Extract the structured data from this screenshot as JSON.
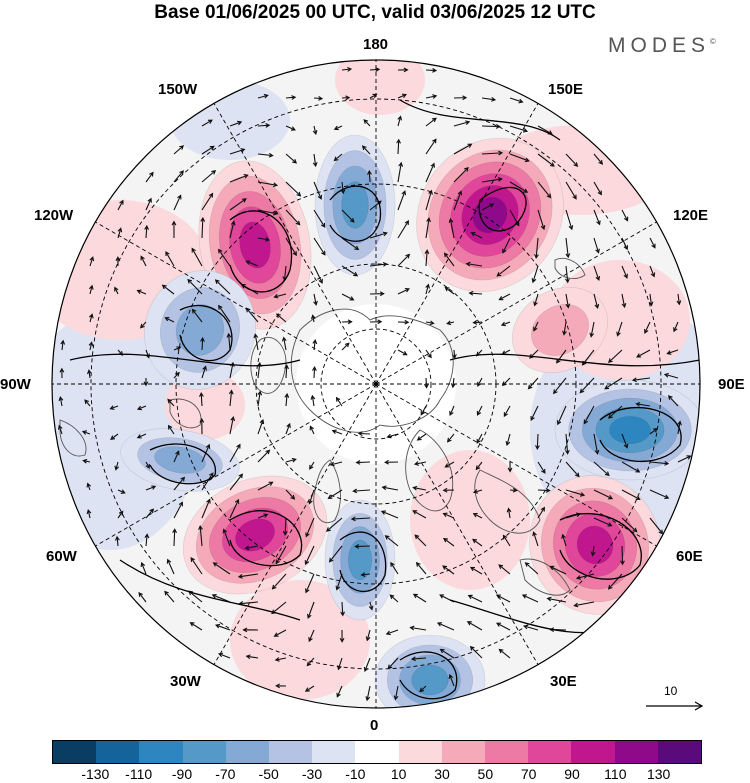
{
  "title": "Base 01/06/2025 00 UTC, valid 03/06/2025 12 UTC",
  "brand": {
    "text": "MODES",
    "mark": "©"
  },
  "longitude_labels": {
    "top": "180",
    "bottom": "0",
    "left": "90W",
    "right": "90E",
    "upper_left_1": "150W",
    "upper_left_2": "120W",
    "lower_left_1": "60W",
    "lower_left_2": "30W",
    "upper_right_1": "150E",
    "upper_right_2": "120E",
    "lower_right_1": "60E",
    "lower_right_2": "30E"
  },
  "reference_vector": {
    "label": "10"
  },
  "colorbar": {
    "colors": [
      "#0a3d62",
      "#14639a",
      "#2e86c1",
      "#5499c7",
      "#85a9d5",
      "#b4c3e3",
      "#dde3f2",
      "#ffffff",
      "#fbd9dc",
      "#f4aab8",
      "#ec7aa4",
      "#e0469a",
      "#c0168e",
      "#8e0a8a",
      "#5a0a7a"
    ],
    "ticks": [
      "-130",
      "-110",
      "-90",
      "-70",
      "-50",
      "-30",
      "-10",
      "10",
      "30",
      "50",
      "70",
      "90",
      "110",
      "130"
    ]
  },
  "anomaly_cells": [
    {
      "name": "cell-pos-east-siberia",
      "value": 110,
      "color": "#c0168e"
    },
    {
      "name": "cell-pos-alaska-west",
      "value": 90,
      "color": "#e0469a"
    },
    {
      "name": "cell-neg-bering",
      "value": -70,
      "color": "#5499c7"
    },
    {
      "name": "cell-neg-central-siberia",
      "value": -90,
      "color": "#2e86c1"
    },
    {
      "name": "cell-pos-europe-east",
      "value": 90,
      "color": "#e0469a"
    },
    {
      "name": "cell-neg-scandinavia",
      "value": -70,
      "color": "#5499c7"
    },
    {
      "name": "cell-neg-west-europe",
      "value": -70,
      "color": "#5499c7"
    },
    {
      "name": "cell-pos-north-atlantic",
      "value": 90,
      "color": "#e0469a"
    },
    {
      "name": "cell-neg-canada",
      "value": -50,
      "color": "#85a9d5"
    },
    {
      "name": "cell-neg-hudson",
      "value": -50,
      "color": "#85a9d5"
    },
    {
      "name": "cell-pos-central-asia",
      "value": 30,
      "color": "#fbd9dc"
    }
  ]
}
